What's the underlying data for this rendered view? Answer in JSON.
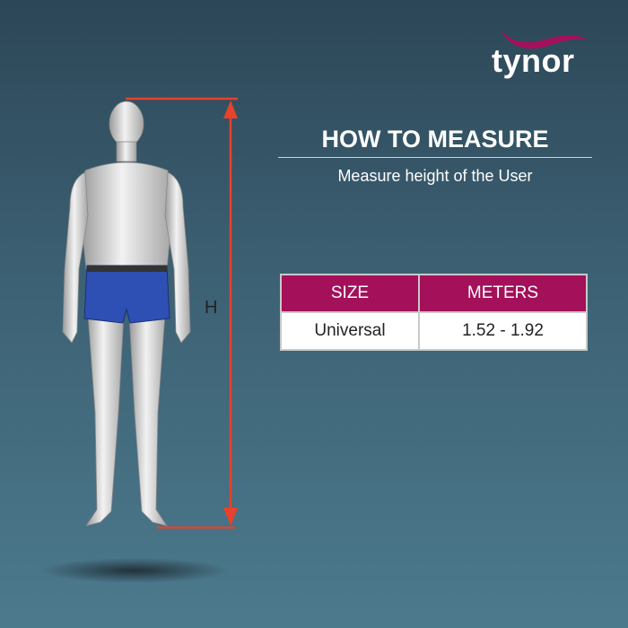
{
  "brand": {
    "logo_text": "tynor",
    "color": "#a4105a"
  },
  "heading": {
    "title": "HOW TO MEASURE",
    "subtitle": "Measure height of the User"
  },
  "measurement": {
    "label": "H",
    "arrow_color": "#e8412c"
  },
  "size_table": {
    "headers": [
      "SIZE",
      "METERS"
    ],
    "rows": [
      [
        "Universal",
        "1.52 - 1.92"
      ]
    ],
    "header_color": "#a4105a"
  }
}
